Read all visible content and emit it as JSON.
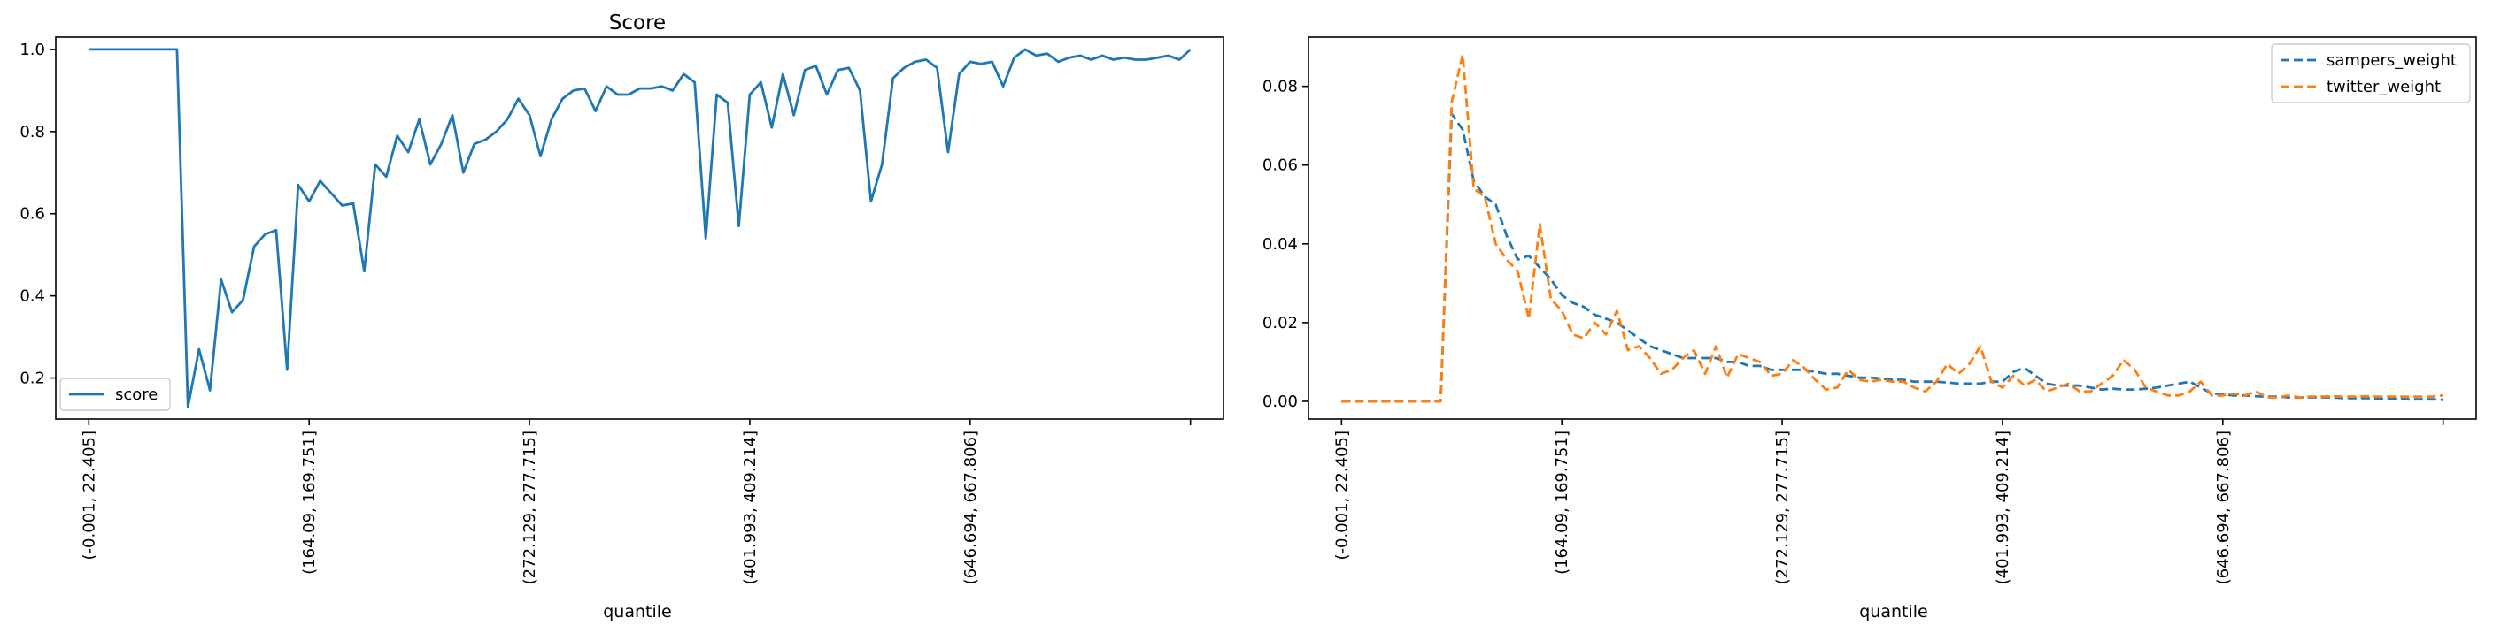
{
  "chart_data": [
    {
      "type": "line",
      "title": "Score",
      "xlabel": "quantile",
      "ylabel": "",
      "ylim": [
        0.1,
        1.03
      ],
      "yticks": [
        0.2,
        0.4,
        0.6,
        0.8,
        1.0
      ],
      "ytick_labels": [
        "0.2",
        "0.4",
        "0.6",
        "0.8",
        "1.0"
      ],
      "xlim": [
        -3,
        103
      ],
      "x_tick_positions": [
        0,
        20,
        40,
        60,
        80,
        100
      ],
      "x_tick_labels": [
        "(-0.001, 22.405]",
        "(164.09, 169.751]",
        "(272.129, 277.715]",
        "(401.993, 409.214]",
        "(646.694, 667.806]",
        ""
      ],
      "legend": {
        "position": "lower-left"
      },
      "grid": false,
      "series": [
        {
          "name": "score",
          "color": "#1f77b4",
          "style": "solid",
          "values": [
            1.0,
            1.0,
            1.0,
            1.0,
            1.0,
            1.0,
            1.0,
            1.0,
            1.0,
            0.13,
            0.27,
            0.17,
            0.44,
            0.36,
            0.39,
            0.52,
            0.55,
            0.56,
            0.22,
            0.67,
            0.63,
            0.68,
            0.65,
            0.62,
            0.625,
            0.46,
            0.72,
            0.69,
            0.79,
            0.75,
            0.83,
            0.72,
            0.77,
            0.84,
            0.7,
            0.77,
            0.78,
            0.8,
            0.83,
            0.88,
            0.84,
            0.74,
            0.83,
            0.88,
            0.9,
            0.905,
            0.85,
            0.91,
            0.89,
            0.89,
            0.905,
            0.905,
            0.91,
            0.9,
            0.94,
            0.92,
            0.54,
            0.89,
            0.87,
            0.57,
            0.89,
            0.92,
            0.81,
            0.94,
            0.84,
            0.95,
            0.96,
            0.89,
            0.95,
            0.955,
            0.9,
            0.63,
            0.72,
            0.93,
            0.955,
            0.97,
            0.975,
            0.955,
            0.75,
            0.94,
            0.97,
            0.965,
            0.97,
            0.91,
            0.98,
            1.0,
            0.985,
            0.99,
            0.97,
            0.98,
            0.985,
            0.975,
            0.985,
            0.975,
            0.98,
            0.975,
            0.975,
            0.98,
            0.985,
            0.975,
            1.0
          ]
        }
      ]
    },
    {
      "type": "line",
      "title": "",
      "xlabel": "quantile",
      "ylabel": "",
      "ylim": [
        -0.0045,
        0.0925
      ],
      "yticks": [
        0.0,
        0.02,
        0.04,
        0.06,
        0.08
      ],
      "ytick_labels": [
        "0.00",
        "0.02",
        "0.04",
        "0.06",
        "0.08"
      ],
      "xlim": [
        -3,
        103
      ],
      "x_tick_positions": [
        0,
        20,
        40,
        60,
        80,
        100
      ],
      "x_tick_labels": [
        "(-0.001, 22.405]",
        "(164.09, 169.751]",
        "(272.129, 277.715]",
        "(401.993, 409.214]",
        "(646.694, 667.806]",
        ""
      ],
      "legend": {
        "position": "upper-right"
      },
      "grid": false,
      "series": [
        {
          "name": "sampers_weight",
          "color": "#1f77b4",
          "style": "dashed",
          "values": [
            0.0,
            0.0,
            0.0,
            0.0,
            0.0,
            0.0,
            0.0,
            0.0,
            0.0,
            0.0,
            0.073,
            0.069,
            0.056,
            0.052,
            0.05,
            0.042,
            0.036,
            0.037,
            0.034,
            0.031,
            0.027,
            0.025,
            0.024,
            0.022,
            0.021,
            0.02,
            0.018,
            0.016,
            0.014,
            0.013,
            0.012,
            0.011,
            0.011,
            0.011,
            0.011,
            0.01,
            0.01,
            0.009,
            0.009,
            0.008,
            0.008,
            0.008,
            0.008,
            0.0075,
            0.007,
            0.007,
            0.0065,
            0.006,
            0.006,
            0.0058,
            0.0055,
            0.0055,
            0.005,
            0.005,
            0.005,
            0.0048,
            0.0045,
            0.0045,
            0.0045,
            0.005,
            0.005,
            0.0075,
            0.0085,
            0.0065,
            0.0045,
            0.004,
            0.004,
            0.004,
            0.0035,
            0.003,
            0.0032,
            0.003,
            0.003,
            0.0032,
            0.0035,
            0.004,
            0.0045,
            0.005,
            0.0035,
            0.002,
            0.0018,
            0.0015,
            0.0015,
            0.0013,
            0.0012,
            0.0012,
            0.001,
            0.001,
            0.001,
            0.001,
            0.001,
            0.0008,
            0.0008,
            0.0008,
            0.0007,
            0.0006,
            0.0006,
            0.0005,
            0.0005,
            0.0005,
            0.0004
          ]
        },
        {
          "name": "twitter_weight",
          "color": "#ff7f0e",
          "style": "dashed",
          "values": [
            0.0,
            0.0,
            0.0,
            0.0,
            0.0,
            0.0,
            0.0,
            0.0,
            0.0,
            0.0,
            0.076,
            0.088,
            0.054,
            0.052,
            0.04,
            0.036,
            0.033,
            0.021,
            0.045,
            0.026,
            0.023,
            0.017,
            0.016,
            0.02,
            0.017,
            0.023,
            0.013,
            0.014,
            0.011,
            0.007,
            0.008,
            0.011,
            0.013,
            0.007,
            0.014,
            0.006,
            0.012,
            0.011,
            0.01,
            0.0065,
            0.007,
            0.0105,
            0.0085,
            0.0055,
            0.003,
            0.0035,
            0.008,
            0.0055,
            0.005,
            0.0055,
            0.005,
            0.005,
            0.0035,
            0.0025,
            0.005,
            0.0095,
            0.007,
            0.0095,
            0.014,
            0.005,
            0.0035,
            0.0065,
            0.004,
            0.0055,
            0.0025,
            0.0035,
            0.0045,
            0.0025,
            0.0025,
            0.0045,
            0.0065,
            0.0105,
            0.008,
            0.0035,
            0.0025,
            0.0015,
            0.0015,
            0.0025,
            0.005,
            0.0015,
            0.0015,
            0.002,
            0.0015,
            0.0025,
            0.001,
            0.001,
            0.0015,
            0.001,
            0.0012,
            0.0012,
            0.0013,
            0.0012,
            0.0012,
            0.0013,
            0.0012,
            0.0012,
            0.0012,
            0.0012,
            0.0012,
            0.0012,
            0.0015
          ]
        }
      ]
    }
  ]
}
